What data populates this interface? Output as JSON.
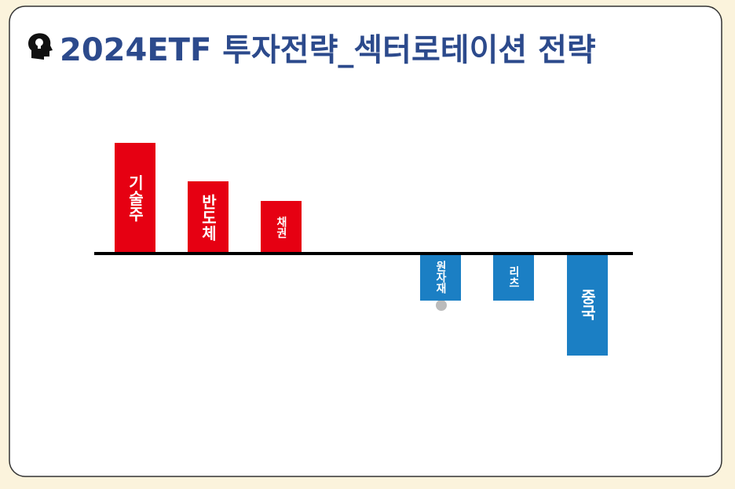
{
  "chart_data": {
    "type": "bar",
    "title": "2024ETF 투자전략_섹터로테이션 전략",
    "categories": [
      "기술주",
      "반도체",
      "채권",
      "원자재",
      "리츠",
      "중국"
    ],
    "values": [
      141,
      92,
      67,
      -60,
      -60,
      -130
    ],
    "colors": [
      "#e60012",
      "#e60012",
      "#e60012",
      "#1b7fc4",
      "#1b7fc4",
      "#1b7fc4"
    ],
    "ylim": [
      -150,
      150
    ]
  }
}
